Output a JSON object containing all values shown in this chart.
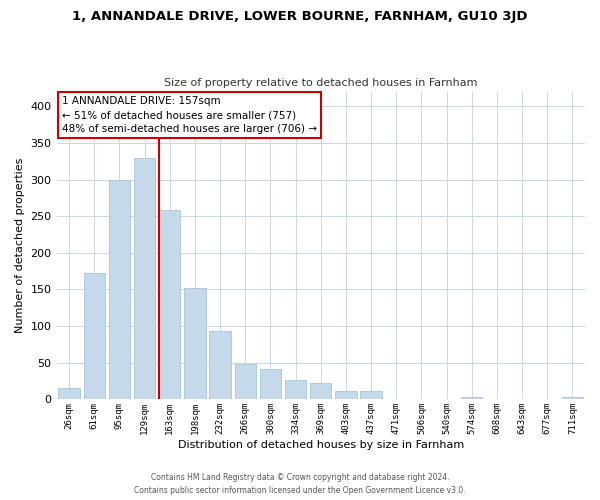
{
  "title": "1, ANNANDALE DRIVE, LOWER BOURNE, FARNHAM, GU10 3JD",
  "subtitle": "Size of property relative to detached houses in Farnham",
  "xlabel": "Distribution of detached houses by size in Farnham",
  "ylabel": "Number of detached properties",
  "bar_labels": [
    "26sqm",
    "61sqm",
    "95sqm",
    "129sqm",
    "163sqm",
    "198sqm",
    "232sqm",
    "266sqm",
    "300sqm",
    "334sqm",
    "369sqm",
    "403sqm",
    "437sqm",
    "471sqm",
    "506sqm",
    "540sqm",
    "574sqm",
    "608sqm",
    "643sqm",
    "677sqm",
    "711sqm"
  ],
  "bar_values": [
    15,
    172,
    300,
    330,
    258,
    152,
    93,
    48,
    42,
    27,
    22,
    12,
    11,
    0,
    0,
    0,
    3,
    0,
    0,
    0,
    3
  ],
  "bar_color": "#c5d9ea",
  "bar_edge_color": "#a8c4dc",
  "highlight_bar_index": 4,
  "highlight_line_color": "#cc0000",
  "ylim": [
    0,
    420
  ],
  "yticks": [
    0,
    50,
    100,
    150,
    200,
    250,
    300,
    350,
    400
  ],
  "annotation_title": "1 ANNANDALE DRIVE: 157sqm",
  "annotation_line1": "← 51% of detached houses are smaller (757)",
  "annotation_line2": "48% of semi-detached houses are larger (706) →",
  "annotation_box_color": "#ffffff",
  "annotation_box_edge": "#cc0000",
  "footer_line1": "Contains HM Land Registry data © Crown copyright and database right 2024.",
  "footer_line2": "Contains public sector information licensed under the Open Government Licence v3.0.",
  "background_color": "#ffffff",
  "grid_color": "#c8d8e8"
}
